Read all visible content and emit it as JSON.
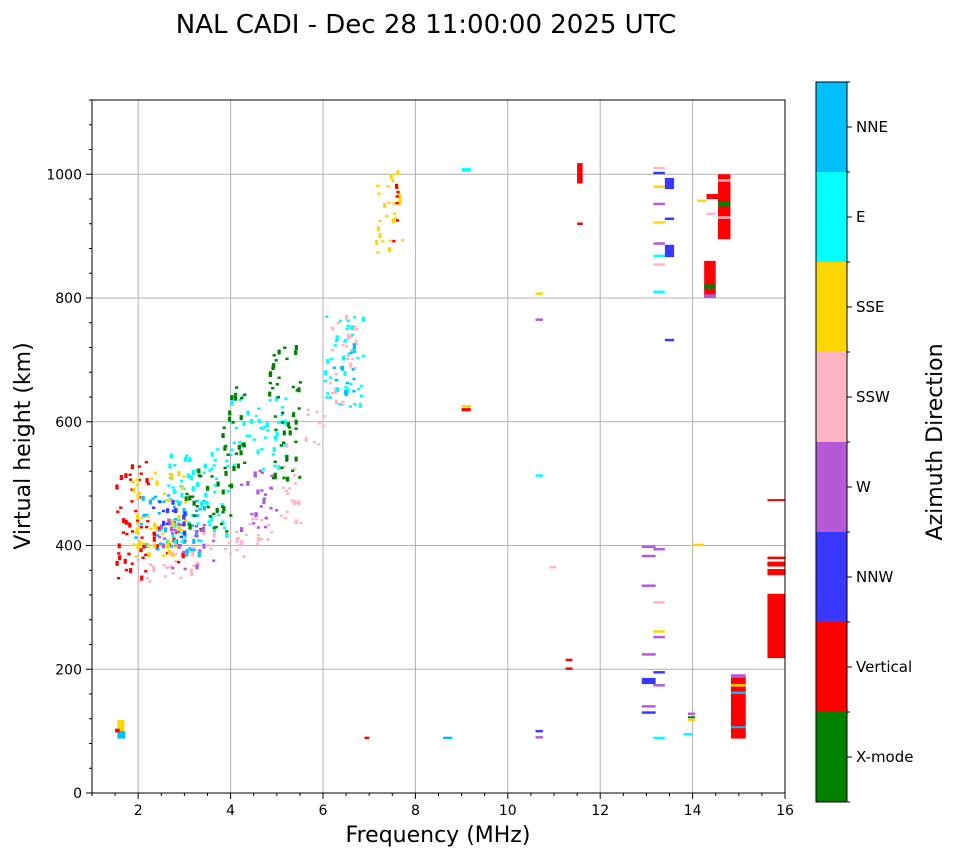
{
  "chart_data": {
    "type": "scatter",
    "title": "NAL CADI - Dec 28 11:00:00 2025 UTC",
    "xlabel": "Frequency (MHz)",
    "ylabel": "Virtual height (km)",
    "xlim": [
      1,
      16
    ],
    "ylim": [
      0,
      1120
    ],
    "xticks": [
      2,
      4,
      6,
      8,
      10,
      12,
      14,
      16
    ],
    "yticks": [
      0,
      200,
      400,
      600,
      800,
      1000
    ],
    "grid": true,
    "colorbar": {
      "label": "Azimuth Direction",
      "categories": [
        {
          "name": "X-mode",
          "color": "#008000"
        },
        {
          "name": "Vertical",
          "color": "#ff0000"
        },
        {
          "name": "NNW",
          "color": "#3838ff"
        },
        {
          "name": "W",
          "color": "#b45ad8"
        },
        {
          "name": "SSW",
          "color": "#ffb6c1"
        },
        {
          "name": "SSE",
          "color": "#ffd700"
        },
        {
          "name": "E",
          "color": "#00ffff"
        },
        {
          "name": "NNE",
          "color": "#00bfff"
        }
      ]
    },
    "cell": {
      "w": 0.07,
      "h": 4
    },
    "echoes": [
      {
        "cat": "SSW",
        "f": [
          1.9,
          2.3
        ],
        "h": [
          330,
          380
        ]
      },
      {
        "cat": "SSW",
        "f": [
          2.3,
          3.3
        ],
        "h": [
          340,
          400
        ]
      },
      {
        "cat": "SSW",
        "f": [
          3.3,
          4.3
        ],
        "h": [
          370,
          420
        ]
      },
      {
        "cat": "SSW",
        "f": [
          4.3,
          5.0
        ],
        "h": [
          400,
          460
        ]
      },
      {
        "cat": "SSW",
        "f": [
          5.0,
          5.5
        ],
        "h": [
          430,
          560
        ]
      },
      {
        "cat": "SSW",
        "f": [
          5.5,
          6.0
        ],
        "h": [
          560,
          620
        ]
      },
      {
        "cat": "SSW",
        "f": [
          6.1,
          6.7
        ],
        "h": [
          620,
          780
        ]
      },
      {
        "cat": "Vertical",
        "f": [
          1.5,
          2.2
        ],
        "h": [
          340,
          540
        ]
      },
      {
        "cat": "Vertical",
        "f": [
          2.0,
          3.0
        ],
        "h": [
          370,
          430
        ]
      },
      {
        "cat": "NNE",
        "f": [
          1.9,
          3.4
        ],
        "h": [
          380,
          480
        ]
      },
      {
        "cat": "E",
        "f": [
          2.6,
          4.0
        ],
        "h": [
          400,
          560
        ]
      },
      {
        "cat": "E",
        "f": [
          3.9,
          5.2
        ],
        "h": [
          520,
          640
        ]
      },
      {
        "cat": "X-mode",
        "f": [
          3.8,
          4.3
        ],
        "h": [
          480,
          660
        ]
      },
      {
        "cat": "X-mode",
        "f": [
          3.0,
          4.0
        ],
        "h": [
          420,
          520
        ]
      },
      {
        "cat": "X-mode",
        "f": [
          4.8,
          5.5
        ],
        "h": [
          500,
          720
        ]
      },
      {
        "cat": "W",
        "f": [
          2.4,
          3.6
        ],
        "h": [
          360,
          440
        ]
      },
      {
        "cat": "W",
        "f": [
          4.2,
          5.0
        ],
        "h": [
          420,
          520
        ]
      },
      {
        "cat": "SSE",
        "f": [
          1.8,
          3.0
        ],
        "h": [
          380,
          520
        ]
      },
      {
        "cat": "NNW",
        "f": [
          2.2,
          3.0
        ],
        "h": [
          410,
          470
        ]
      },
      {
        "cat": "E",
        "f": [
          6.0,
          6.9
        ],
        "h": [
          620,
          770
        ]
      },
      {
        "cat": "NNE",
        "f": [
          6.2,
          6.7
        ],
        "h": [
          640,
          730
        ]
      },
      {
        "cat": "SSE",
        "f": [
          7.1,
          7.7
        ],
        "h": [
          860,
          1000
        ]
      },
      {
        "cat": "Vertical",
        "f": [
          7.5,
          7.6
        ],
        "h": [
          870,
          1020
        ]
      }
    ],
    "features": [
      {
        "cat": "SSE",
        "f": [
          1.55,
          1.7
        ],
        "h": [
          88,
          118
        ]
      },
      {
        "cat": "NNE",
        "f": [
          1.55,
          1.72
        ],
        "h": [
          88,
          100
        ]
      },
      {
        "cat": "Vertical",
        "f": [
          1.5,
          1.6
        ],
        "h": [
          98,
          104
        ]
      },
      {
        "cat": "Vertical",
        "f": [
          6.9,
          7.0
        ],
        "h": [
          87,
          91
        ]
      },
      {
        "cat": "NNE",
        "f": [
          8.6,
          8.8
        ],
        "h": [
          87,
          91
        ]
      },
      {
        "cat": "Vertical",
        "f": [
          9.0,
          9.2
        ],
        "h": [
          617,
          622
        ]
      },
      {
        "cat": "SSE",
        "f": [
          9.0,
          9.2
        ],
        "h": [
          623,
          627
        ]
      },
      {
        "cat": "E",
        "f": [
          9.0,
          9.2
        ],
        "h": [
          1004,
          1010
        ]
      },
      {
        "cat": "NNW",
        "f": [
          10.6,
          10.76
        ],
        "h": [
          98,
          102
        ]
      },
      {
        "cat": "W",
        "f": [
          10.6,
          10.76
        ],
        "h": [
          88,
          92
        ]
      },
      {
        "cat": "E",
        "f": [
          10.6,
          10.76
        ],
        "h": [
          511,
          515
        ]
      },
      {
        "cat": "W",
        "f": [
          10.6,
          10.76
        ],
        "h": [
          763,
          767
        ]
      },
      {
        "cat": "SSE",
        "f": [
          10.6,
          10.76
        ],
        "h": [
          805,
          809
        ]
      },
      {
        "cat": "SSW",
        "f": [
          10.9,
          11.05
        ],
        "h": [
          363,
          367
        ]
      },
      {
        "cat": "Vertical",
        "f": [
          11.25,
          11.4
        ],
        "h": [
          199,
          203
        ]
      },
      {
        "cat": "Vertical",
        "f": [
          11.25,
          11.4
        ],
        "h": [
          213,
          217
        ]
      },
      {
        "cat": "Vertical",
        "f": [
          11.5,
          11.62
        ],
        "h": [
          985,
          1018
        ]
      },
      {
        "cat": "Vertical",
        "f": [
          11.5,
          11.62
        ],
        "h": [
          918,
          922
        ]
      },
      {
        "cat": "NNW",
        "f": [
          12.9,
          13.2
        ],
        "h": [
          128,
          132
        ]
      },
      {
        "cat": "W",
        "f": [
          12.9,
          13.2
        ],
        "h": [
          138,
          142
        ]
      },
      {
        "cat": "NNW",
        "f": [
          12.9,
          13.2
        ],
        "h": [
          176,
          186
        ]
      },
      {
        "cat": "W",
        "f": [
          12.9,
          13.2
        ],
        "h": [
          222,
          226
        ]
      },
      {
        "cat": "W",
        "f": [
          12.9,
          13.2
        ],
        "h": [
          333,
          337
        ]
      },
      {
        "cat": "W",
        "f": [
          12.9,
          13.2
        ],
        "h": [
          381,
          385
        ]
      },
      {
        "cat": "W",
        "f": [
          12.9,
          13.2
        ],
        "h": [
          396,
          400
        ]
      },
      {
        "cat": "E",
        "f": [
          13.15,
          13.4
        ],
        "h": [
          87,
          91
        ]
      },
      {
        "cat": "W",
        "f": [
          13.15,
          13.4
        ],
        "h": [
          172,
          176
        ]
      },
      {
        "cat": "NNW",
        "f": [
          13.15,
          13.4
        ],
        "h": [
          193,
          197
        ]
      },
      {
        "cat": "W",
        "f": [
          13.15,
          13.4
        ],
        "h": [
          250,
          254
        ]
      },
      {
        "cat": "SSE",
        "f": [
          13.15,
          13.4
        ],
        "h": [
          259,
          263
        ]
      },
      {
        "cat": "SSW",
        "f": [
          13.15,
          13.4
        ],
        "h": [
          306,
          310
        ]
      },
      {
        "cat": "W",
        "f": [
          13.15,
          13.4
        ],
        "h": [
          392,
          396
        ]
      },
      {
        "cat": "NNW",
        "f": [
          13.4,
          13.6
        ],
        "h": [
          730,
          734
        ]
      },
      {
        "cat": "E",
        "f": [
          13.15,
          13.4
        ],
        "h": [
          808,
          812
        ]
      },
      {
        "cat": "SSW",
        "f": [
          13.15,
          13.4
        ],
        "h": [
          852,
          856
        ]
      },
      {
        "cat": "E",
        "f": [
          13.15,
          13.4
        ],
        "h": [
          866,
          870
        ]
      },
      {
        "cat": "W",
        "f": [
          13.15,
          13.4
        ],
        "h": [
          886,
          890
        ]
      },
      {
        "cat": "NNW",
        "f": [
          13.4,
          13.6
        ],
        "h": [
          866,
          886
        ]
      },
      {
        "cat": "SSE",
        "f": [
          13.15,
          13.4
        ],
        "h": [
          920,
          924
        ]
      },
      {
        "cat": "NNW",
        "f": [
          13.4,
          13.6
        ],
        "h": [
          926,
          930
        ]
      },
      {
        "cat": "W",
        "f": [
          13.15,
          13.4
        ],
        "h": [
          950,
          954
        ]
      },
      {
        "cat": "SSE",
        "f": [
          13.15,
          13.4
        ],
        "h": [
          978,
          982
        ]
      },
      {
        "cat": "NNW",
        "f": [
          13.4,
          13.6
        ],
        "h": [
          976,
          994
        ]
      },
      {
        "cat": "NNW",
        "f": [
          13.15,
          13.4
        ],
        "h": [
          1000,
          1004
        ]
      },
      {
        "cat": "SSW",
        "f": [
          13.15,
          13.4
        ],
        "h": [
          1008,
          1012
        ]
      },
      {
        "cat": "E",
        "f": [
          13.8,
          14.0
        ],
        "h": [
          93,
          97
        ]
      },
      {
        "cat": "SSE",
        "f": [
          13.9,
          14.05
        ],
        "h": [
          116,
          120
        ]
      },
      {
        "cat": "X-mode",
        "f": [
          13.9,
          14.05
        ],
        "h": [
          121,
          124
        ]
      },
      {
        "cat": "W",
        "f": [
          13.9,
          14.05
        ],
        "h": [
          126,
          130
        ]
      },
      {
        "cat": "SSE",
        "f": [
          14.0,
          14.25
        ],
        "h": [
          399,
          403
        ]
      },
      {
        "cat": "SSE",
        "f": [
          14.1,
          14.3
        ],
        "h": [
          955,
          959
        ]
      },
      {
        "cat": "Vertical",
        "f": [
          14.25,
          14.5
        ],
        "h": [
          800,
          860
        ]
      },
      {
        "cat": "X-mode",
        "f": [
          14.25,
          14.5
        ],
        "h": [
          815,
          822
        ]
      },
      {
        "cat": "W",
        "f": [
          14.25,
          14.5
        ],
        "h": [
          800,
          806
        ]
      },
      {
        "cat": "Vertical",
        "f": [
          14.3,
          14.6
        ],
        "h": [
          960,
          968
        ]
      },
      {
        "cat": "SSW",
        "f": [
          14.3,
          14.5
        ],
        "h": [
          934,
          938
        ]
      },
      {
        "cat": "Vertical",
        "f": [
          14.55,
          14.82
        ],
        "h": [
          895,
          1000
        ]
      },
      {
        "cat": "X-mode",
        "f": [
          14.55,
          14.82
        ],
        "h": [
          948,
          956
        ]
      },
      {
        "cat": "SSW",
        "f": [
          14.55,
          14.82
        ],
        "h": [
          988,
          992
        ]
      },
      {
        "cat": "SSW",
        "f": [
          14.55,
          14.82
        ],
        "h": [
          928,
          932
        ]
      },
      {
        "cat": "Vertical",
        "f": [
          14.83,
          15.15
        ],
        "h": [
          88,
          190
        ]
      },
      {
        "cat": "NNE",
        "f": [
          14.83,
          15.15
        ],
        "h": [
          105,
          108
        ]
      },
      {
        "cat": "NNE",
        "f": [
          14.83,
          15.15
        ],
        "h": [
          160,
          164
        ]
      },
      {
        "cat": "SSE",
        "f": [
          14.83,
          15.15
        ],
        "h": [
          172,
          176
        ]
      },
      {
        "cat": "W",
        "f": [
          14.83,
          15.15
        ],
        "h": [
          186,
          192
        ]
      },
      {
        "cat": "Vertical",
        "f": [
          15.62,
          16.0
        ],
        "h": [
          218,
          322
        ]
      },
      {
        "cat": "Vertical",
        "f": [
          15.62,
          16.0
        ],
        "h": [
          352,
          362
        ]
      },
      {
        "cat": "Vertical",
        "f": [
          15.62,
          16.0
        ],
        "h": [
          366,
          374
        ]
      },
      {
        "cat": "Vertical",
        "f": [
          15.62,
          16.0
        ],
        "h": [
          378,
          382
        ]
      },
      {
        "cat": "Vertical",
        "f": [
          15.62,
          16.0
        ],
        "h": [
          472,
          475
        ]
      }
    ]
  }
}
